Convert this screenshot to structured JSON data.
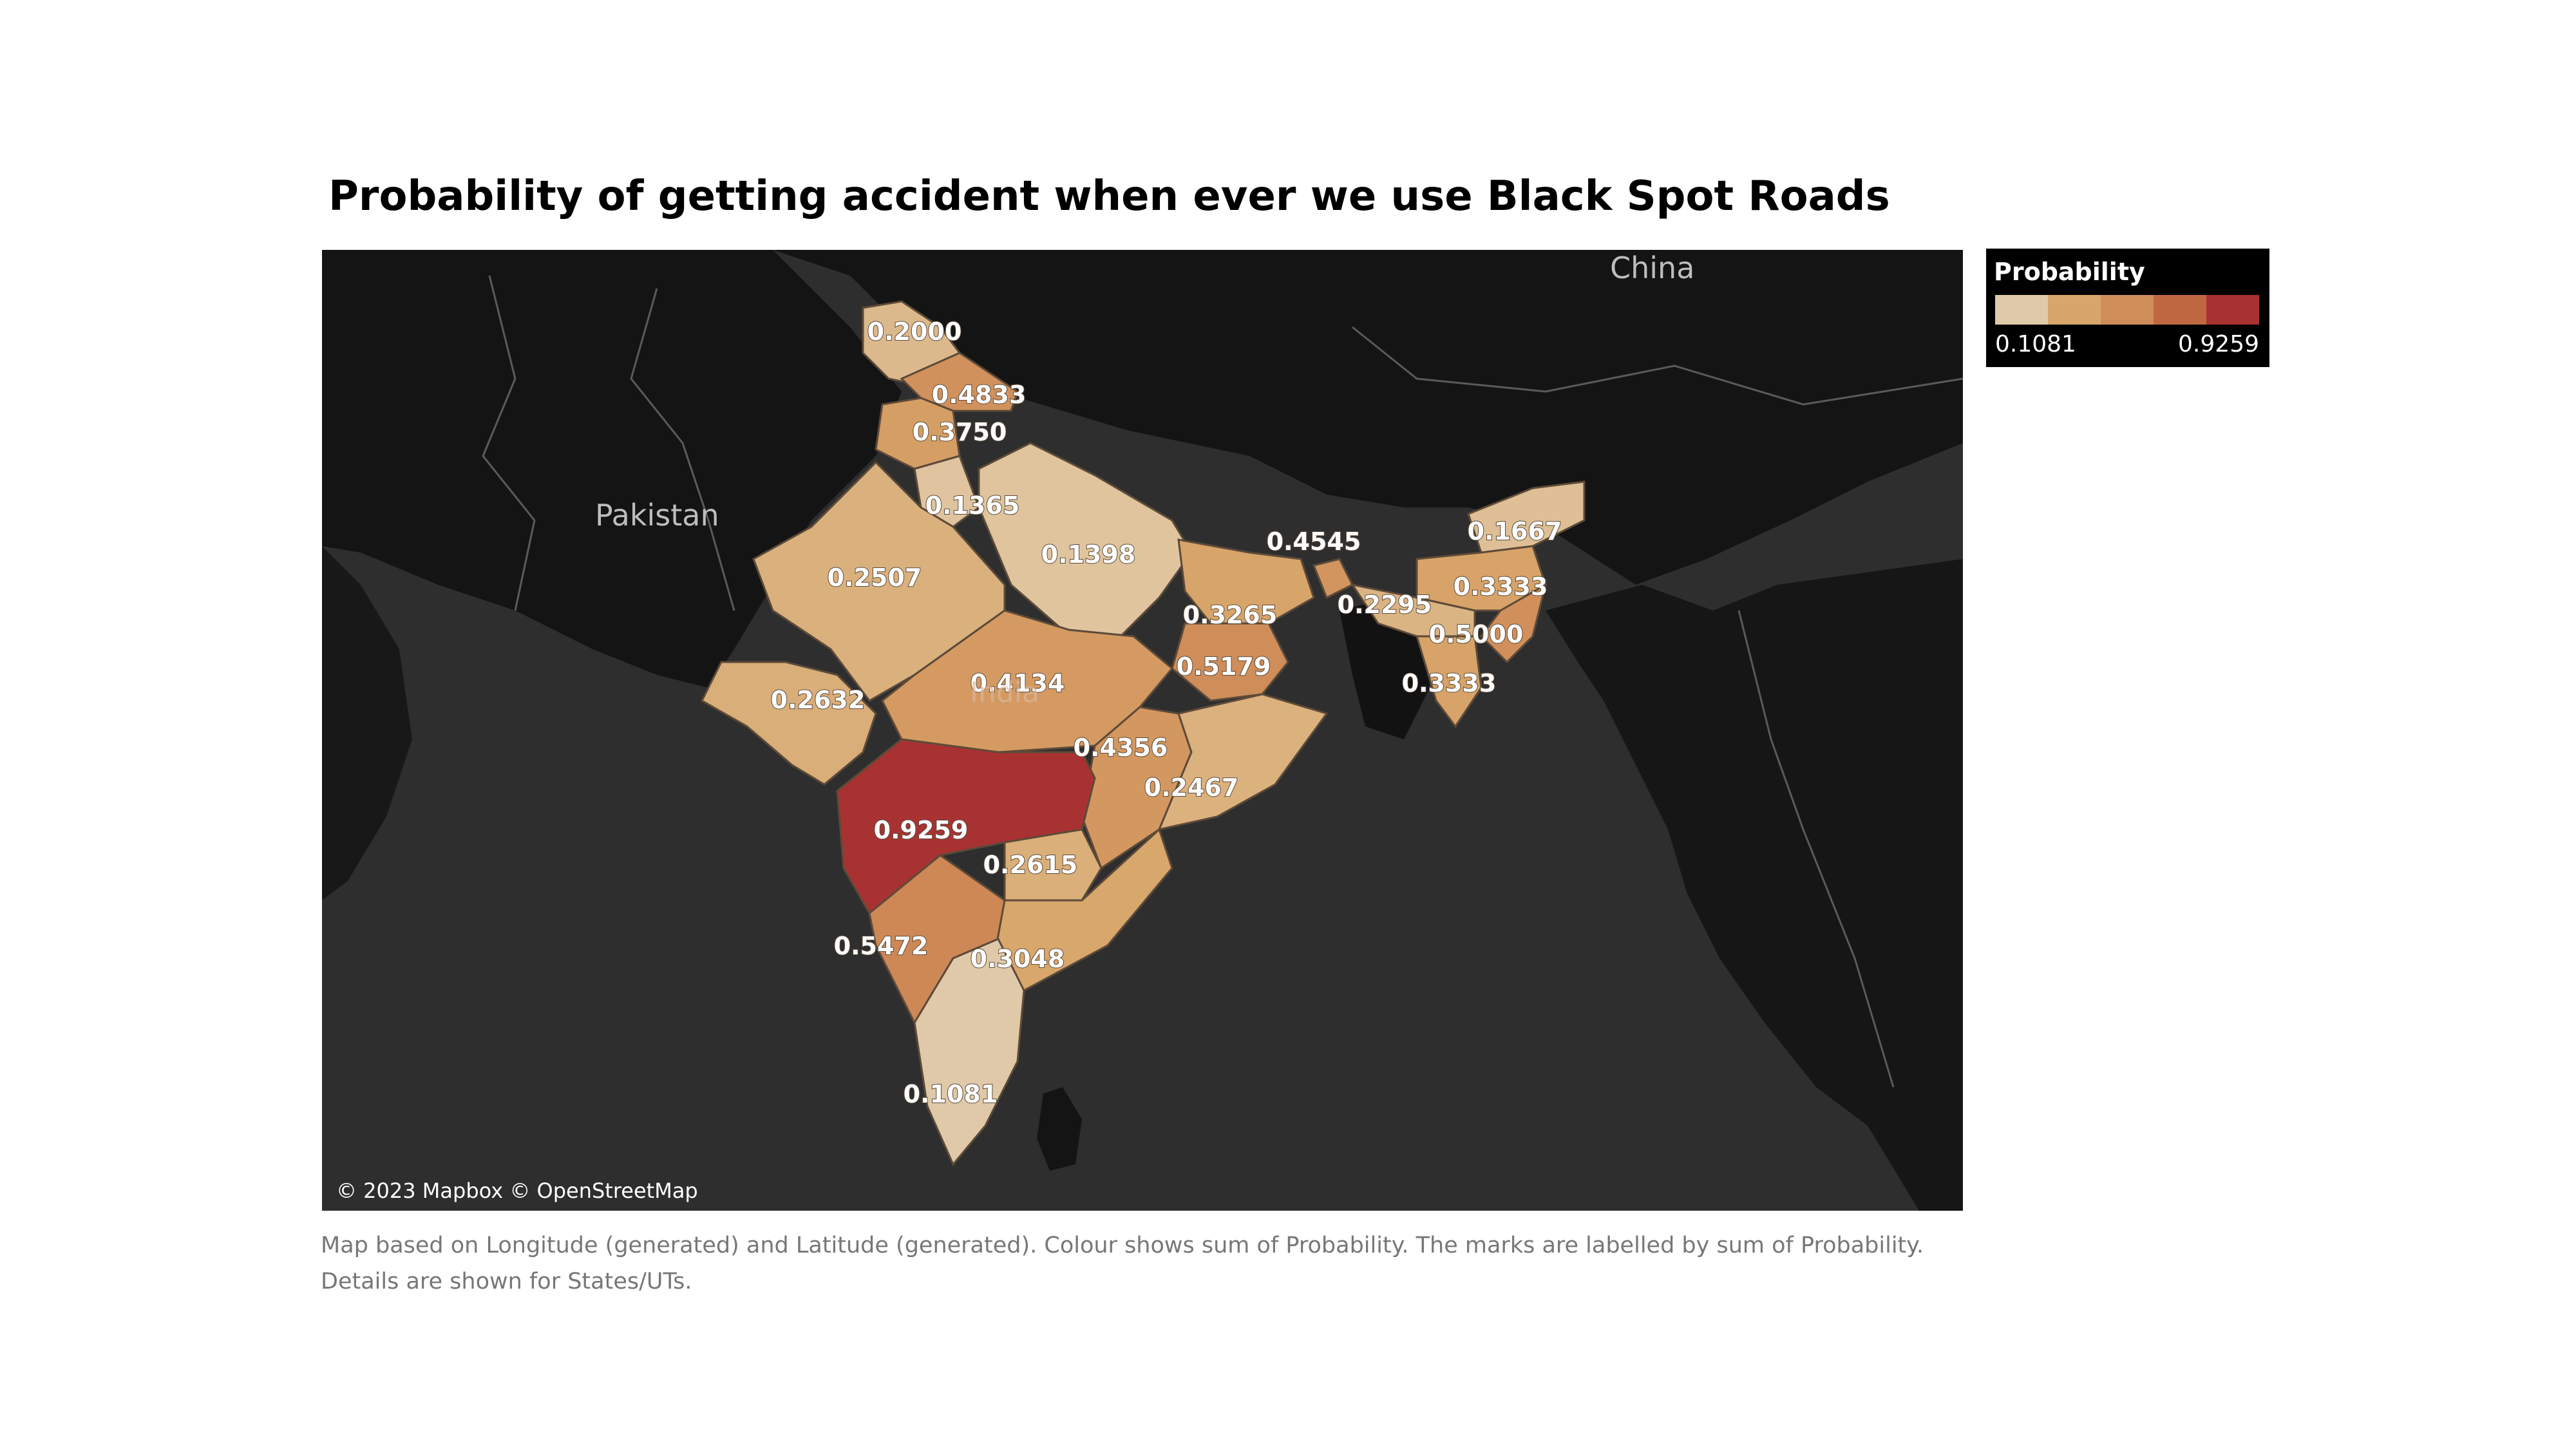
{
  "title": "Probability of getting accident when ever we use Black Spot Roads",
  "map": {
    "attribution": "© 2023 Mapbox © OpenStreetMap",
    "country_labels": {
      "china": "China",
      "pakistan": "Pakistan",
      "india": "India"
    },
    "colors": {
      "ocean": "#2e2e2e",
      "land": "#141414",
      "border": "#5a5a5a"
    }
  },
  "legend": {
    "title": "Probability",
    "min": "0.1081",
    "max": "0.9259",
    "colors": [
      "#e0c9a8",
      "#d8a66a",
      "#cf8d5a",
      "#bf6840",
      "#a83232"
    ]
  },
  "chart_data": {
    "type": "choropleth",
    "measure": "Probability",
    "range": [
      0.1081,
      0.9259
    ],
    "values": [
      "0.2000",
      "0.4833",
      "0.3750",
      "0.1365",
      "0.1398",
      "0.2507",
      "0.2632",
      "0.4134",
      "0.3265",
      "0.5179",
      "0.4545",
      "0.2295",
      "0.1667",
      "0.3333",
      "0.5000",
      "0.3333",
      "0.4356",
      "0.2467",
      "0.9259",
      "0.2615",
      "0.5472",
      "0.3048",
      "0.1081"
    ]
  },
  "caption": {
    "line1": "Map based on Longitude (generated) and Latitude (generated).  Colour shows sum of Probability.  The marks are labelled by sum of Probability.",
    "line2": "Details are shown for States/UTs."
  }
}
